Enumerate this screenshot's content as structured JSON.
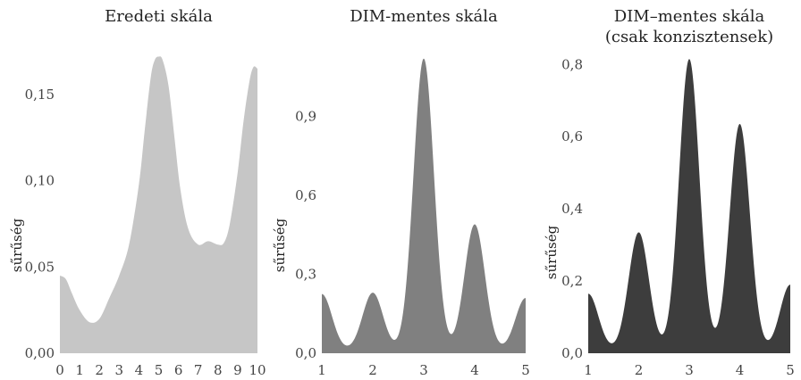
{
  "chart_data": [
    {
      "type": "area",
      "title": "Eredeti skála",
      "title_line2": "",
      "ylabel": "sűrűség",
      "xlim": [
        0,
        10
      ],
      "ylim": [
        0,
        0.18
      ],
      "x_ticks": [
        0,
        1,
        2,
        3,
        4,
        5,
        6,
        7,
        8,
        9,
        10
      ],
      "x_tick_labels": [
        "0",
        "1",
        "2",
        "3",
        "4",
        "5",
        "6",
        "7",
        "8",
        "9",
        "10"
      ],
      "y_ticks": [
        0,
        0.05,
        0.1,
        0.15
      ],
      "y_tick_labels": [
        "0,00",
        "0,05",
        "0,10",
        "0,15"
      ],
      "fill": "#c6c6c6",
      "x": [
        0,
        0.3,
        0.6,
        1.0,
        1.5,
        2.0,
        2.5,
        3.0,
        3.5,
        4.0,
        4.3,
        4.6,
        4.8,
        5.0,
        5.2,
        5.5,
        5.8,
        6.1,
        6.5,
        7.0,
        7.5,
        8.0,
        8.3,
        8.6,
        9.0,
        9.3,
        9.6,
        9.8,
        10.0
      ],
      "y": [
        0.045,
        0.043,
        0.035,
        0.025,
        0.018,
        0.02,
        0.032,
        0.045,
        0.063,
        0.098,
        0.13,
        0.16,
        0.17,
        0.172,
        0.17,
        0.155,
        0.125,
        0.095,
        0.072,
        0.063,
        0.065,
        0.063,
        0.064,
        0.075,
        0.105,
        0.135,
        0.158,
        0.166,
        0.165
      ]
    },
    {
      "type": "area",
      "title": "DIM-mentes skála",
      "title_line2": "",
      "ylabel": "sűrűség",
      "xlim": [
        1,
        5
      ],
      "ylim": [
        0,
        1.18
      ],
      "x_ticks": [
        1,
        2,
        3,
        4,
        5
      ],
      "x_tick_labels": [
        "1",
        "2",
        "3",
        "4",
        "5"
      ],
      "y_ticks": [
        0,
        0.3,
        0.6,
        0.9
      ],
      "y_tick_labels": [
        "0,0",
        "0,3",
        "0,6",
        "0,9"
      ],
      "fill": "#808080",
      "peaks": [
        [
          1,
          0.225
        ],
        [
          2,
          0.23
        ],
        [
          3,
          1.12
        ],
        [
          4,
          0.49
        ],
        [
          5,
          0.21
        ]
      ],
      "trough": 0.01
    },
    {
      "type": "area",
      "title": "DIM–mentes skála",
      "title_line2": "(csak konzisztensek)",
      "ylabel": "sűrűség",
      "xlim": [
        1,
        5
      ],
      "ylim": [
        0,
        0.86
      ],
      "x_ticks": [
        1,
        2,
        3,
        4,
        5
      ],
      "x_tick_labels": [
        "1",
        "2",
        "3",
        "4",
        "5"
      ],
      "y_ticks": [
        0,
        0.2,
        0.4,
        0.6,
        0.8
      ],
      "y_tick_labels": [
        "0,0",
        "0,2",
        "0,4",
        "0,6",
        "0,8"
      ],
      "fill": "#3d3d3d",
      "peaks": [
        [
          1,
          0.165
        ],
        [
          2,
          0.335
        ],
        [
          3,
          0.815
        ],
        [
          4,
          0.635
        ],
        [
          5,
          0.19
        ]
      ],
      "trough": 0.008
    }
  ]
}
